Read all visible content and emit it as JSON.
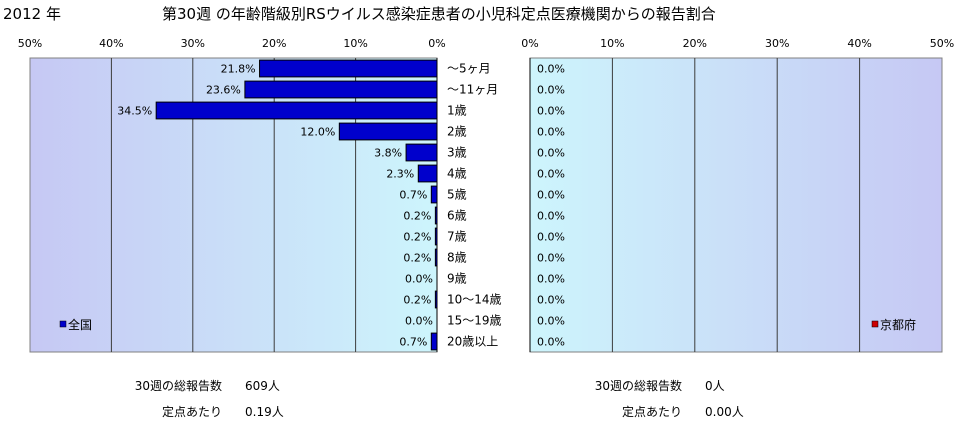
{
  "header": {
    "year": "2012 年",
    "title": "第30週 の年齢階級別RSウイルス感染症患者の小児科定点医療機関からの報告割合"
  },
  "chart_data": [
    {
      "type": "bar",
      "orientation": "horizontal",
      "x_reversed": true,
      "categories": [
        "～5ヶ月",
        "～11ヶ月",
        "1歳",
        "2歳",
        "3歳",
        "4歳",
        "5歳",
        "6歳",
        "7歳",
        "8歳",
        "9歳",
        "10～14歳",
        "15～19歳",
        "20歳以上"
      ],
      "series": [
        {
          "name": "全国",
          "values": [
            21.8,
            23.6,
            34.5,
            12.0,
            3.8,
            2.3,
            0.7,
            0.2,
            0.2,
            0.2,
            0.0,
            0.2,
            0.0,
            0.7
          ],
          "color": "#0000cc"
        }
      ],
      "xlim": [
        0,
        50
      ],
      "x_ticks": [
        0,
        10,
        20,
        30,
        40,
        50
      ],
      "x_tick_labels": [
        "0%",
        "10%",
        "20%",
        "30%",
        "40%",
        "50%"
      ],
      "grid": true,
      "data_labels": true,
      "legend": "bottom-left"
    },
    {
      "type": "bar",
      "orientation": "horizontal",
      "x_reversed": false,
      "series": [
        {
          "name": "京都府",
          "values": [
            0.0,
            0.0,
            0.0,
            0.0,
            0.0,
            0.0,
            0.0,
            0.0,
            0.0,
            0.0,
            0.0,
            0.0,
            0.0,
            0.0
          ],
          "color": "#cc0000"
        }
      ],
      "xlim": [
        0,
        50
      ],
      "x_ticks": [
        0,
        10,
        20,
        30,
        40,
        50
      ],
      "x_tick_labels": [
        "0%",
        "10%",
        "20%",
        "30%",
        "40%",
        "50%"
      ],
      "grid": true,
      "data_labels": true,
      "legend": "bottom-right"
    }
  ],
  "summary": {
    "national": {
      "total_label": "30週の総報告数",
      "total_value": "609人",
      "per_label": "定点あたり",
      "per_value": "0.19人"
    },
    "kyoto": {
      "total_label": "30週の総報告数",
      "total_value": "0人",
      "per_label": "定点あたり",
      "per_value": "0.00人"
    }
  }
}
